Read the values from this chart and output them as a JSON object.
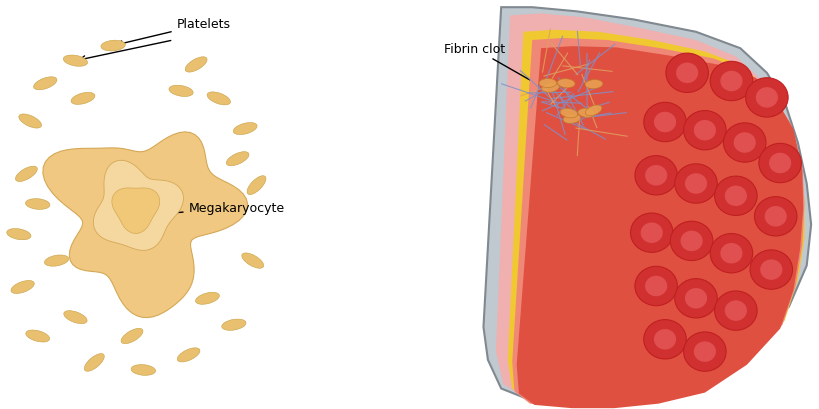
{
  "left_bg_color": "#9aabbf",
  "right_bg_color": "#ffffff",
  "megakaryocyte_color": "#f0c882",
  "megakaryocyte_nucleus_color": "#e8b86a",
  "platelet_color": "#e8c070",
  "vessel_outer_color": "#b0b8c0",
  "vessel_middle_color": "#f5c842",
  "vessel_inner_color": "#f0a0a0",
  "vessel_lumen_color": "#e87060",
  "rbc_outer_color": "#d03030",
  "rbc_inner_color": "#e05050",
  "fibrin_color_blue": "#8090c8",
  "fibrin_color_orange": "#e0a060",
  "labels": {
    "platelets": "Platelets",
    "megakaryocyte": "Megakaryocyte",
    "fibrin_clot": "Fibrin clot"
  },
  "label_fontsize": 9,
  "figsize": [
    8.2,
    4.1
  ],
  "dpi": 100
}
